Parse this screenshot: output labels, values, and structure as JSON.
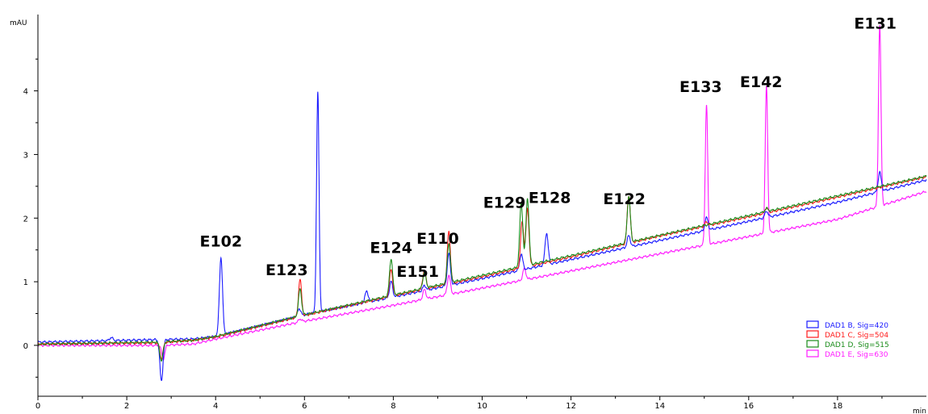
{
  "chart_data": {
    "type": "line",
    "title": "",
    "xlabel": "min",
    "ylabel": "mAU",
    "xlim": [
      0,
      20.0
    ],
    "ylim": [
      -0.8,
      5.2
    ],
    "x_ticks": [
      0,
      2,
      4,
      6,
      8,
      10,
      12,
      14,
      16,
      18
    ],
    "y_ticks": [
      0,
      1,
      2,
      3,
      4
    ],
    "grid": false,
    "legend_position": "bottom-right",
    "series": [
      {
        "name": "DAD1 B, Sig=420",
        "color": "#1a1aff",
        "baseline": [
          [
            0,
            0.05
          ],
          [
            2.7,
            0.09
          ],
          [
            3.5,
            0.1
          ],
          [
            4.0,
            0.14
          ],
          [
            6.0,
            0.48
          ],
          [
            8.0,
            0.76
          ],
          [
            10.0,
            1.05
          ],
          [
            12.0,
            1.35
          ],
          [
            14.0,
            1.65
          ],
          [
            16.0,
            1.95
          ],
          [
            18.0,
            2.25
          ],
          [
            20.0,
            2.6
          ]
        ],
        "peaks": [
          {
            "x": 1.65,
            "height": 0.05
          },
          {
            "x": 2.78,
            "height": -0.65
          },
          {
            "x": 4.12,
            "height": 1.22
          },
          {
            "x": 5.88,
            "height": 0.12
          },
          {
            "x": 6.3,
            "height": 3.45
          },
          {
            "x": 7.4,
            "height": 0.18
          },
          {
            "x": 7.95,
            "height": 0.25
          },
          {
            "x": 8.7,
            "height": 0.08
          },
          {
            "x": 9.25,
            "height": 0.5
          },
          {
            "x": 10.88,
            "height": 0.25
          },
          {
            "x": 11.45,
            "height": 0.5
          },
          {
            "x": 13.3,
            "height": 0.18
          },
          {
            "x": 15.05,
            "height": 0.2
          },
          {
            "x": 16.4,
            "height": 0.1
          },
          {
            "x": 18.95,
            "height": 0.3
          }
        ]
      },
      {
        "name": "DAD1 C, Sig=504",
        "color": "#ff1a1a",
        "baseline": [
          [
            0,
            0.02
          ],
          [
            2.7,
            0.04
          ],
          [
            3.5,
            0.08
          ],
          [
            4.0,
            0.13
          ],
          [
            6.0,
            0.47
          ],
          [
            8.0,
            0.78
          ],
          [
            10.0,
            1.08
          ],
          [
            12.0,
            1.39
          ],
          [
            14.0,
            1.72
          ],
          [
            16.0,
            2.02
          ],
          [
            18.0,
            2.33
          ],
          [
            20.0,
            2.65
          ]
        ],
        "peaks": [
          {
            "x": 2.78,
            "height": -0.25
          },
          {
            "x": 5.9,
            "height": 0.58
          },
          {
            "x": 7.95,
            "height": 0.42
          },
          {
            "x": 8.7,
            "height": 0.3
          },
          {
            "x": 9.25,
            "height": 0.82
          },
          {
            "x": 10.9,
            "height": 0.72
          },
          {
            "x": 11.02,
            "height": 0.9
          },
          {
            "x": 13.3,
            "height": 0.75
          },
          {
            "x": 15.05,
            "height": 0.06
          },
          {
            "x": 16.4,
            "height": 0.08
          }
        ]
      },
      {
        "name": "DAD1 D, Sig=515",
        "color": "#1a8c1a",
        "baseline": [
          [
            0,
            0.02
          ],
          [
            2.7,
            0.05
          ],
          [
            3.5,
            0.08
          ],
          [
            4.0,
            0.14
          ],
          [
            6.0,
            0.48
          ],
          [
            8.0,
            0.79
          ],
          [
            10.0,
            1.1
          ],
          [
            12.0,
            1.41
          ],
          [
            14.0,
            1.73
          ],
          [
            16.0,
            2.04
          ],
          [
            18.0,
            2.35
          ],
          [
            20.0,
            2.66
          ]
        ],
        "peaks": [
          {
            "x": 2.78,
            "height": -0.3
          },
          {
            "x": 5.9,
            "height": 0.42
          },
          {
            "x": 7.95,
            "height": 0.58
          },
          {
            "x": 8.7,
            "height": 0.25
          },
          {
            "x": 9.25,
            "height": 0.62
          },
          {
            "x": 10.88,
            "height": 1.0
          },
          {
            "x": 11.02,
            "height": 1.05
          },
          {
            "x": 13.3,
            "height": 0.72
          },
          {
            "x": 16.4,
            "height": 0.05
          }
        ]
      },
      {
        "name": "DAD1 E, Sig=630",
        "color": "#ff1aff",
        "baseline": [
          [
            0,
            0.0
          ],
          [
            2.7,
            0.0
          ],
          [
            3.5,
            0.02
          ],
          [
            4.0,
            0.1
          ],
          [
            6.0,
            0.38
          ],
          [
            8.0,
            0.63
          ],
          [
            10.0,
            0.9
          ],
          [
            12.0,
            1.17
          ],
          [
            14.0,
            1.44
          ],
          [
            16.0,
            1.71
          ],
          [
            18.0,
            1.98
          ],
          [
            20.0,
            2.42
          ]
        ],
        "peaks": [
          {
            "x": 2.82,
            "height": -0.22
          },
          {
            "x": 5.9,
            "height": 0.05
          },
          {
            "x": 8.7,
            "height": 0.15
          },
          {
            "x": 9.25,
            "height": 0.3
          },
          {
            "x": 10.95,
            "height": 0.18
          },
          {
            "x": 15.05,
            "height": 2.2
          },
          {
            "x": 16.4,
            "height": 2.3
          },
          {
            "x": 18.95,
            "height": 2.85
          }
        ]
      }
    ],
    "annotations": [
      {
        "text": "E102",
        "x": 4.12,
        "y": 1.55
      },
      {
        "text": "E123",
        "x": 5.6,
        "y": 1.1
      },
      {
        "text": "E124",
        "x": 7.95,
        "y": 1.45
      },
      {
        "text": "E151",
        "x": 8.55,
        "y": 1.08
      },
      {
        "text": "E110",
        "x": 9.0,
        "y": 1.6
      },
      {
        "text": "E129",
        "x": 10.5,
        "y": 2.16
      },
      {
        "text": "E128",
        "x": 11.52,
        "y": 2.24
      },
      {
        "text": "E122",
        "x": 13.2,
        "y": 2.22
      },
      {
        "text": "E133",
        "x": 14.92,
        "y": 3.98
      },
      {
        "text": "E142",
        "x": 16.28,
        "y": 4.06
      },
      {
        "text": "E131",
        "x": 18.85,
        "y": 4.98
      }
    ]
  }
}
